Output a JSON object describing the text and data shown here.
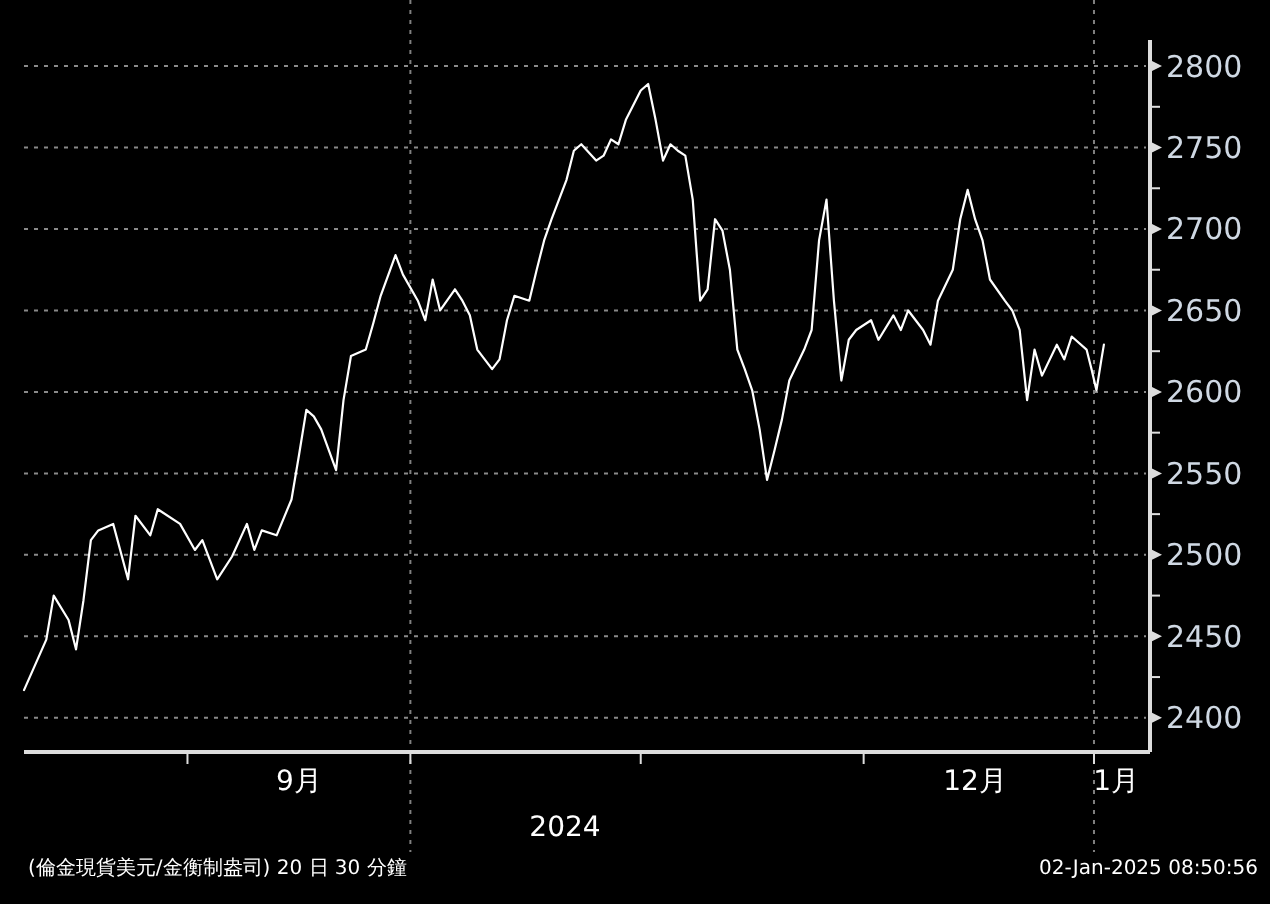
{
  "chart_data": {
    "type": "line",
    "xlabel": "2024",
    "x": [
      "2024-08-10",
      "2024-08-13",
      "2024-08-14",
      "2024-08-16",
      "2024-08-17",
      "2024-08-18",
      "2024-08-19",
      "2024-08-20",
      "2024-08-22",
      "2024-08-24",
      "2024-08-25",
      "2024-08-27",
      "2024-08-28",
      "2024-08-31",
      "2024-09-02",
      "2024-09-03",
      "2024-09-05",
      "2024-09-07",
      "2024-09-09",
      "2024-09-10",
      "2024-09-11",
      "2024-09-13",
      "2024-09-15",
      "2024-09-16",
      "2024-09-17",
      "2024-09-18",
      "2024-09-19",
      "2024-09-21",
      "2024-09-22",
      "2024-09-23",
      "2024-09-25",
      "2024-09-26",
      "2024-09-27",
      "2024-09-29",
      "2024-09-30",
      "2024-10-02",
      "2024-10-03",
      "2024-10-04",
      "2024-10-05",
      "2024-10-07",
      "2024-10-08",
      "2024-10-09",
      "2024-10-10",
      "2024-10-12",
      "2024-10-13",
      "2024-10-14",
      "2024-10-15",
      "2024-10-17",
      "2024-10-18",
      "2024-10-19",
      "2024-10-20",
      "2024-10-22",
      "2024-10-23",
      "2024-10-24",
      "2024-10-26",
      "2024-10-27",
      "2024-10-28",
      "2024-10-29",
      "2024-10-30",
      "2024-11-01",
      "2024-11-02",
      "2024-11-03",
      "2024-11-04",
      "2024-11-05",
      "2024-11-06",
      "2024-11-07",
      "2024-11-08",
      "2024-11-09",
      "2024-11-10",
      "2024-11-11",
      "2024-11-12",
      "2024-11-13",
      "2024-11-14",
      "2024-11-15",
      "2024-11-16",
      "2024-11-17",
      "2024-11-18",
      "2024-11-19",
      "2024-11-20",
      "2024-11-21",
      "2024-11-23",
      "2024-11-24",
      "2024-11-25",
      "2024-11-26",
      "2024-11-27",
      "2024-11-28",
      "2024-11-29",
      "2024-11-30",
      "2024-12-02",
      "2024-12-03",
      "2024-12-05",
      "2024-12-06",
      "2024-12-07",
      "2024-12-09",
      "2024-12-10",
      "2024-12-11",
      "2024-12-13",
      "2024-12-14",
      "2024-12-15",
      "2024-12-16",
      "2024-12-17",
      "2024-12-18",
      "2024-12-20",
      "2024-12-21",
      "2024-12-22",
      "2024-12-23",
      "2024-12-24",
      "2024-12-25",
      "2024-12-27",
      "2024-12-28",
      "2024-12-29",
      "2024-12-31T00:00",
      "2024-12-31T16:00",
      "2025-01-01T08:00",
      "2025-01-02T00:00",
      "2025-01-02T08:00"
    ],
    "series": [
      {
        "color": "#ffffff",
        "values": [
          2417,
          2448,
          2475,
          2460,
          2442,
          2472,
          2509,
          2515,
          2519,
          2485,
          2524,
          2512,
          2528,
          2519,
          2503,
          2509,
          2485,
          2499,
          2519,
          2503,
          2515,
          2512,
          2534,
          2561,
          2589,
          2585,
          2577,
          2552,
          2595,
          2622,
          2626,
          2642,
          2659,
          2684,
          2672,
          2656,
          2644,
          2669,
          2650,
          2663,
          2656,
          2647,
          2626,
          2614,
          2620,
          2644,
          2659,
          2656,
          2675,
          2693,
          2706,
          2730,
          2748,
          2752,
          2742,
          2745,
          2755,
          2752,
          2767,
          2785,
          2789,
          2767,
          2742,
          2752,
          2748,
          2745,
          2718,
          2656,
          2663,
          2706,
          2699,
          2675,
          2626,
          2614,
          2601,
          2577,
          2546,
          2564,
          2583,
          2607,
          2626,
          2638,
          2693,
          2718,
          2656,
          2607,
          2632,
          2638,
          2644,
          2632,
          2647,
          2638,
          2650,
          2638,
          2629,
          2656,
          2675,
          2706,
          2724,
          2706,
          2693,
          2669,
          2656,
          2650,
          2638,
          2595,
          2626,
          2610,
          2629,
          2620,
          2634,
          2626,
          2614,
          2601,
          2620,
          2629
        ]
      }
    ],
    "xlim": [
      "2024-08-10",
      "2025-01-08"
    ],
    "xticks": [
      {
        "value": "2024-09-01",
        "label": null
      },
      {
        "value": "2024-09-16",
        "label": "9月"
      },
      {
        "value": "2024-10-01",
        "label": null
      },
      {
        "value": "2024-11-01",
        "label": null
      },
      {
        "value": "2024-12-01",
        "label": null
      },
      {
        "value": "2024-12-16",
        "label": "12月"
      },
      {
        "value": "2025-01-01",
        "label": null
      },
      {
        "value": "2025-01-04",
        "label": "1月"
      }
    ],
    "ylim": [
      2379,
      2816
    ],
    "yticks": [
      2400,
      {
        "value": 2425,
        "label": null
      },
      2450,
      {
        "value": 2475,
        "label": null
      },
      2500,
      {
        "value": 2525,
        "label": null
      },
      2550,
      {
        "value": 2575,
        "label": null
      },
      2600,
      {
        "value": 2625,
        "label": null
      },
      2650,
      {
        "value": 2675,
        "label": null
      },
      2700,
      {
        "value": 2725,
        "label": null
      },
      2750,
      {
        "value": 2775,
        "label": null
      },
      2800
    ],
    "grid": "y",
    "ref_lines": [
      {
        "axis": "x",
        "value": "2024-10-01",
        "color": "#808080",
        "line_style": "dotted"
      },
      {
        "axis": "x",
        "value": "2025-01-01",
        "color": "#808080",
        "line_style": "dotted"
      }
    ],
    "annotations": [
      "(倫金現貨美元/金衡制盎司) 20 日 30 分鐘",
      "02-Jan-2025 08:50:56"
    ]
  }
}
